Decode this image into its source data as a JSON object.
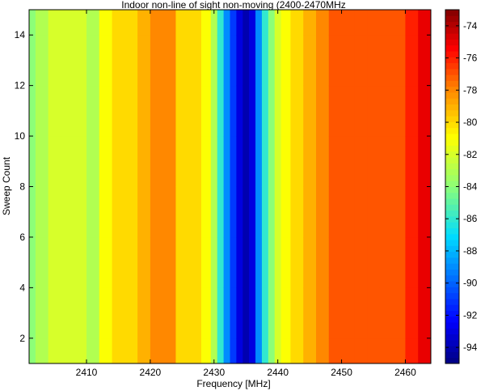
{
  "chart_data": {
    "type": "heatmap",
    "title": "Indoor non-line of sight non-moving (2400-2470MHz",
    "xlabel": "Frequency [MHz]",
    "ylabel": "Sweep Count",
    "xlim": [
      2401,
      2464
    ],
    "ylim": [
      1,
      15
    ],
    "xticks": [
      "2410",
      "2420",
      "2430",
      "2440",
      "2450",
      "2460"
    ],
    "yticks": [
      "2",
      "4",
      "6",
      "8",
      "10",
      "12",
      "14"
    ],
    "colorbar": {
      "range": [
        -95,
        -73
      ],
      "ticks": [
        "-74",
        "-76",
        "-78",
        "-80",
        "-82",
        "-84",
        "-86",
        "-88",
        "-90",
        "-92",
        "-94"
      ]
    },
    "x": [
      2401,
      2403,
      2405,
      2407,
      2409,
      2411,
      2413,
      2415,
      2417,
      2419,
      2421,
      2423,
      2425,
      2427,
      2429,
      2430,
      2431,
      2432,
      2433,
      2434,
      2435,
      2436,
      2437,
      2438,
      2439,
      2440,
      2441,
      2443,
      2445,
      2447,
      2449,
      2451,
      2453,
      2455,
      2457,
      2459,
      2461,
      2463
    ],
    "y": [
      1,
      3,
      5,
      7,
      9,
      11,
      13,
      15
    ],
    "profile_dbm": [
      -84,
      -83,
      -82,
      -82,
      -82,
      -83,
      -81,
      -80,
      -80,
      -79,
      -78,
      -78,
      -80,
      -80,
      -81,
      -83,
      -86,
      -89,
      -91,
      -93,
      -94,
      -93,
      -89,
      -86,
      -84,
      -82,
      -81,
      -80,
      -79,
      -78,
      -77,
      -77,
      -77,
      -77,
      -77,
      -77,
      -76,
      -75
    ]
  }
}
